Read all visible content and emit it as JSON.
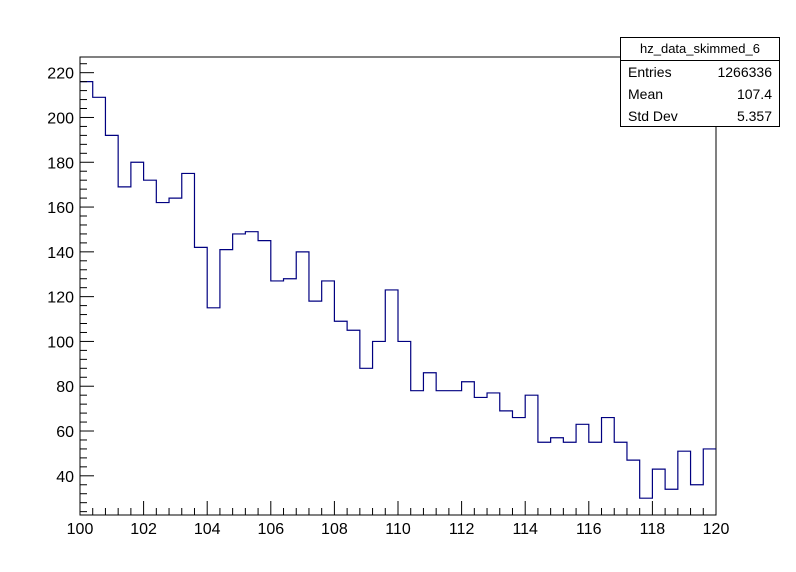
{
  "chart_data": {
    "type": "histogram",
    "title": "",
    "xlabel": "",
    "ylabel": "",
    "xlim": [
      100,
      120
    ],
    "ylim": [
      22.5,
      227
    ],
    "grid": false,
    "bin_width": 0.4,
    "x_ticks": [
      "100",
      "102",
      "104",
      "106",
      "108",
      "110",
      "112",
      "114",
      "116",
      "118",
      "120"
    ],
    "y_ticks": [
      "40",
      "60",
      "80",
      "100",
      "120",
      "140",
      "160",
      "180",
      "200",
      "220"
    ],
    "series": [
      {
        "line_color": "#000080",
        "bins": [
          {
            "x": 100.0,
            "y": 216
          },
          {
            "x": 100.4,
            "y": 209
          },
          {
            "x": 100.8,
            "y": 192
          },
          {
            "x": 101.2,
            "y": 169
          },
          {
            "x": 101.6,
            "y": 180
          },
          {
            "x": 102.0,
            "y": 172
          },
          {
            "x": 102.4,
            "y": 162
          },
          {
            "x": 102.8,
            "y": 164
          },
          {
            "x": 103.2,
            "y": 175
          },
          {
            "x": 103.6,
            "y": 142
          },
          {
            "x": 104.0,
            "y": 115
          },
          {
            "x": 104.4,
            "y": 141
          },
          {
            "x": 104.8,
            "y": 148
          },
          {
            "x": 105.2,
            "y": 149
          },
          {
            "x": 105.6,
            "y": 145
          },
          {
            "x": 106.0,
            "y": 127
          },
          {
            "x": 106.4,
            "y": 128
          },
          {
            "x": 106.8,
            "y": 140
          },
          {
            "x": 107.2,
            "y": 118
          },
          {
            "x": 107.6,
            "y": 127
          },
          {
            "x": 108.0,
            "y": 109
          },
          {
            "x": 108.4,
            "y": 105
          },
          {
            "x": 108.8,
            "y": 88
          },
          {
            "x": 109.2,
            "y": 100
          },
          {
            "x": 109.6,
            "y": 123
          },
          {
            "x": 110.0,
            "y": 100
          },
          {
            "x": 110.4,
            "y": 78
          },
          {
            "x": 110.8,
            "y": 86
          },
          {
            "x": 111.2,
            "y": 78
          },
          {
            "x": 111.6,
            "y": 78
          },
          {
            "x": 112.0,
            "y": 82
          },
          {
            "x": 112.4,
            "y": 75
          },
          {
            "x": 112.8,
            "y": 77
          },
          {
            "x": 113.2,
            "y": 69
          },
          {
            "x": 113.6,
            "y": 66
          },
          {
            "x": 114.0,
            "y": 76
          },
          {
            "x": 114.4,
            "y": 55
          },
          {
            "x": 114.8,
            "y": 57
          },
          {
            "x": 115.2,
            "y": 55
          },
          {
            "x": 115.6,
            "y": 63
          },
          {
            "x": 116.0,
            "y": 55
          },
          {
            "x": 116.4,
            "y": 66
          },
          {
            "x": 116.8,
            "y": 55
          },
          {
            "x": 117.2,
            "y": 47
          },
          {
            "x": 117.6,
            "y": 30
          },
          {
            "x": 118.0,
            "y": 43
          },
          {
            "x": 118.4,
            "y": 34
          },
          {
            "x": 118.8,
            "y": 51
          },
          {
            "x": 119.2,
            "y": 36
          },
          {
            "x": 119.6,
            "y": 52
          }
        ]
      }
    ]
  },
  "stats": {
    "name": "hz_data_skimmed_6",
    "entries_label": "Entries",
    "entries_value": "1266336",
    "mean_label": "Mean",
    "mean_value": "107.4",
    "stddev_label": "Std Dev",
    "stddev_value": "5.357"
  }
}
